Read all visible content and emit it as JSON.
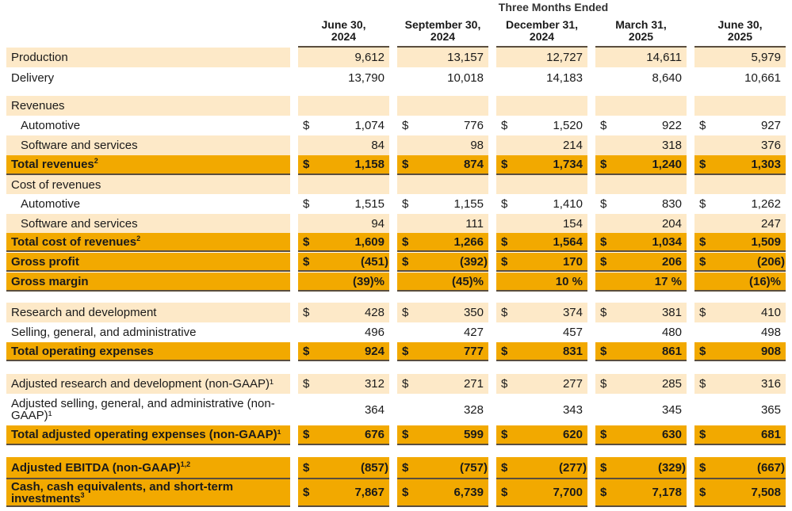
{
  "header": {
    "title": "Three Months Ended",
    "columns": [
      {
        "line1": "June 30,",
        "line2": "2024"
      },
      {
        "line1": "September 30,",
        "line2": "2024"
      },
      {
        "line1": "December 31,",
        "line2": "2024"
      },
      {
        "line1": "March 31,",
        "line2": "2025"
      },
      {
        "line1": "June 30,",
        "line2": "2025"
      }
    ]
  },
  "colors": {
    "light_band": "#fde9c8",
    "highlight": "#f2a900",
    "rule": "#5a4e3e"
  },
  "rows": [
    {
      "label": "Production",
      "style": "light",
      "values": [
        "9,612",
        "13,157",
        "12,727",
        "14,611",
        "5,979"
      ],
      "dollar": false
    },
    {
      "label": "Delivery",
      "style": "white",
      "values": [
        "13,790",
        "10,018",
        "14,183",
        "8,640",
        "10,661"
      ],
      "dollar": false
    },
    {
      "label": "Revenues",
      "style": "light",
      "values": [
        "",
        "",
        "",
        "",
        ""
      ],
      "dollar": false
    },
    {
      "label": "Automotive",
      "style": "white",
      "indent": true,
      "values": [
        "1,074",
        "776",
        "1,520",
        "922",
        "927"
      ],
      "dollar": true
    },
    {
      "label": "Software and services",
      "style": "light",
      "indent": true,
      "values": [
        "84",
        "98",
        "214",
        "318",
        "376"
      ],
      "dollar": false
    },
    {
      "label": "Total revenues",
      "sup": "2",
      "style": "orange",
      "values": [
        "1,158",
        "874",
        "1,734",
        "1,240",
        "1,303"
      ],
      "dollar": true
    },
    {
      "label": "Cost of revenues",
      "style": "light",
      "values": [
        "",
        "",
        "",
        "",
        ""
      ],
      "dollar": false
    },
    {
      "label": "Automotive",
      "style": "white",
      "indent": true,
      "values": [
        "1,515",
        "1,155",
        "1,410",
        "830",
        "1,262"
      ],
      "dollar": true
    },
    {
      "label": "Software and services",
      "style": "light",
      "indent": true,
      "values": [
        "94",
        "111",
        "154",
        "204",
        "247"
      ],
      "dollar": false
    },
    {
      "label": "Total cost of revenues",
      "sup": "2",
      "style": "orange",
      "values": [
        "1,609",
        "1,266",
        "1,564",
        "1,034",
        "1,509"
      ],
      "dollar": true
    },
    {
      "label": "Gross profit",
      "style": "orange",
      "values": [
        "(451)",
        "(392)",
        "170",
        "206",
        "(206)"
      ],
      "dollar": true
    },
    {
      "label": "Gross margin",
      "style": "orange",
      "values": [
        "(39)%",
        "(45)%",
        "10 %",
        "17 %",
        "(16)%"
      ],
      "dollar": false
    },
    {
      "label": "Research and development",
      "style": "light",
      "values": [
        "428",
        "350",
        "374",
        "381",
        "410"
      ],
      "dollar": true
    },
    {
      "label": "Selling, general, and administrative",
      "style": "white",
      "values": [
        "496",
        "427",
        "457",
        "480",
        "498"
      ],
      "dollar": false
    },
    {
      "label": "Total operating expenses",
      "style": "orange",
      "values": [
        "924",
        "777",
        "831",
        "861",
        "908"
      ],
      "dollar": true
    },
    {
      "label": "Adjusted research and development (non-GAAP)¹",
      "style": "light",
      "values": [
        "312",
        "271",
        "277",
        "285",
        "316"
      ],
      "dollar": true
    },
    {
      "label": "Adjusted selling, general, and administrative (non-GAAP)¹",
      "style": "white",
      "values": [
        "364",
        "328",
        "343",
        "345",
        "365"
      ],
      "dollar": false
    },
    {
      "label": "Total adjusted operating expenses (non-GAAP)¹",
      "style": "orange",
      "values": [
        "676",
        "599",
        "620",
        "630",
        "681"
      ],
      "dollar": true
    },
    {
      "label": "Adjusted EBITDA (non-GAAP)",
      "sup": "1,2",
      "style": "orange",
      "values": [
        "(857)",
        "(757)",
        "(277)",
        "(329)",
        "(667)"
      ],
      "dollar": true
    },
    {
      "label": "Cash, cash equivalents, and short-term investments",
      "sup": "3",
      "style": "orange",
      "values": [
        "7,867",
        "6,739",
        "7,700",
        "7,178",
        "7,508"
      ],
      "dollar": true
    }
  ]
}
